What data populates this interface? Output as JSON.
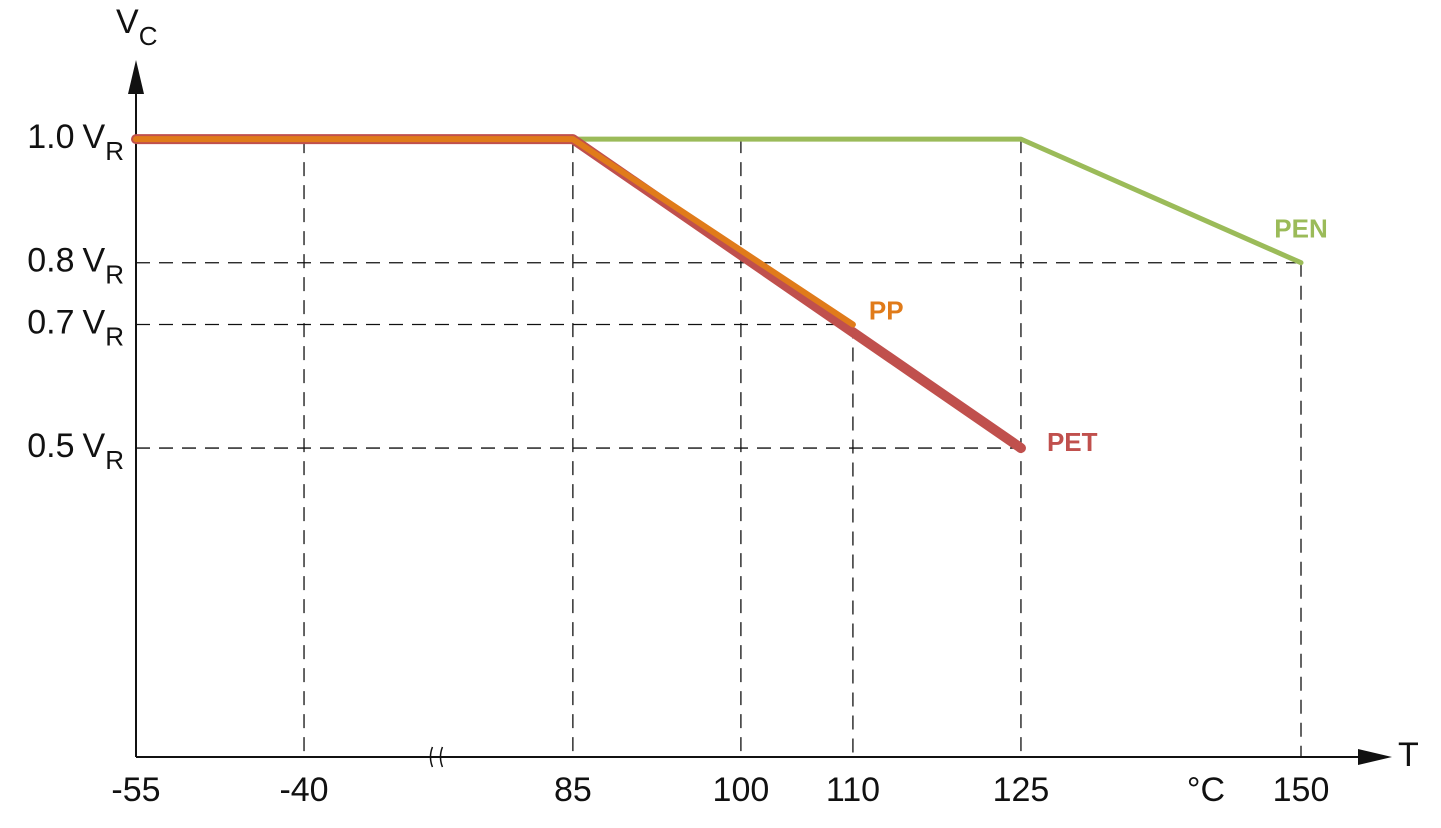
{
  "chart_data": {
    "type": "line",
    "ylabel": {
      "main": "V",
      "sub": "C"
    },
    "xlabel": "T",
    "xunit": "°C",
    "ytick_unit": {
      "main": "V",
      "sub": "R"
    },
    "xlim": [
      -55,
      150
    ],
    "xbreak": [
      -28,
      73
    ],
    "xticks": [
      -55,
      -40,
      85,
      100,
      110,
      125,
      150
    ],
    "ylim": [
      0,
      1.12
    ],
    "yticks": [
      {
        "value": 1,
        "label": "1.0"
      },
      {
        "value": 0.8,
        "label": "0.8"
      },
      {
        "value": 0.7,
        "label": "0.7"
      },
      {
        "value": 0.5,
        "label": "0.5"
      }
    ],
    "grid": true,
    "series": [
      {
        "name": "PEN",
        "color": "#9bbb59",
        "x": [
          -55,
          85,
          125,
          150
        ],
        "values": [
          1,
          1,
          1,
          0.8
        ]
      },
      {
        "name": "PET",
        "color": "#c0504d",
        "x": [
          -55,
          85,
          125
        ],
        "values": [
          1,
          1,
          0.5
        ]
      },
      {
        "name": "PP",
        "color": "#e07b1a",
        "x": [
          -55,
          85,
          110
        ],
        "values": [
          1,
          1,
          0.7
        ]
      }
    ]
  }
}
